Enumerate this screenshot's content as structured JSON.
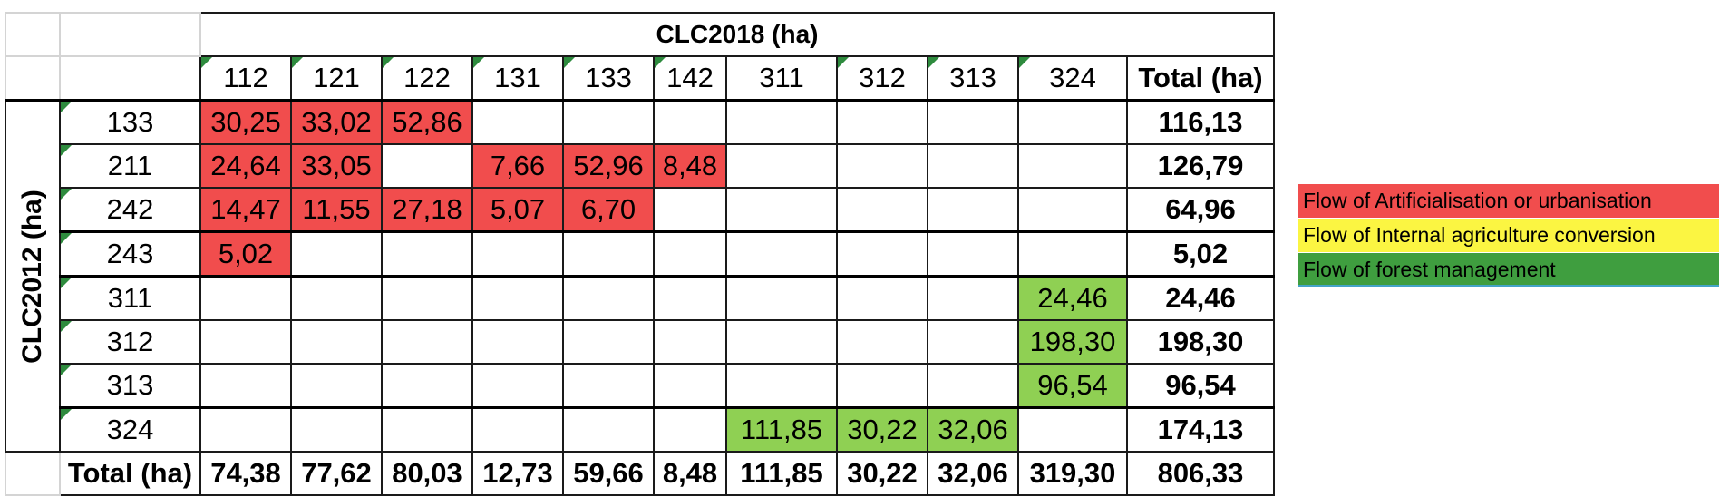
{
  "table": {
    "col_header_title": "CLC2018 (ha)",
    "row_header_title": "CLC2012 (ha)",
    "columns": [
      "112",
      "121",
      "122",
      "131",
      "133",
      "142",
      "311",
      "312",
      "313",
      "324"
    ],
    "total_label": "Total (ha)",
    "rows": [
      {
        "code": "133",
        "cells": [
          "30,25",
          "33,02",
          "52,86",
          "",
          "",
          "",
          "",
          "",
          "",
          ""
        ],
        "total": "116,13"
      },
      {
        "code": "211",
        "cells": [
          "24,64",
          "33,05",
          "",
          "7,66",
          "52,96",
          "8,48",
          "",
          "",
          "",
          ""
        ],
        "total": "126,79"
      },
      {
        "code": "242",
        "cells": [
          "14,47",
          "11,55",
          "27,18",
          "5,07",
          "6,70",
          "",
          "",
          "",
          "",
          ""
        ],
        "total": "64,96"
      },
      {
        "code": "243",
        "cells": [
          "5,02",
          "",
          "",
          "",
          "",
          "",
          "",
          "",
          "",
          ""
        ],
        "total": "5,02"
      },
      {
        "code": "311",
        "cells": [
          "",
          "",
          "",
          "",
          "",
          "",
          "",
          "",
          "",
          "24,46"
        ],
        "total": "24,46"
      },
      {
        "code": "312",
        "cells": [
          "",
          "",
          "",
          "",
          "",
          "",
          "",
          "",
          "",
          "198,30"
        ],
        "total": "198,30"
      },
      {
        "code": "313",
        "cells": [
          "",
          "",
          "",
          "",
          "",
          "",
          "",
          "",
          "",
          "96,54"
        ],
        "total": "96,54"
      },
      {
        "code": "324",
        "cells": [
          "",
          "",
          "",
          "",
          "",
          "",
          "111,85",
          "30,22",
          "32,06",
          ""
        ],
        "total": "174,13"
      }
    ],
    "column_totals": [
      "74,38",
      "77,62",
      "80,03",
      "12,73",
      "59,66",
      "8,48",
      "111,85",
      "30,22",
      "32,06",
      "319,30"
    ],
    "grand_total": "806,33"
  },
  "highlights": {
    "red_cells": [
      [
        0,
        0
      ],
      [
        0,
        1
      ],
      [
        0,
        2
      ],
      [
        1,
        0
      ],
      [
        1,
        1
      ],
      [
        1,
        3
      ],
      [
        1,
        4
      ],
      [
        1,
        5
      ],
      [
        2,
        0
      ],
      [
        2,
        1
      ],
      [
        2,
        2
      ],
      [
        2,
        3
      ],
      [
        2,
        4
      ],
      [
        3,
        0
      ]
    ],
    "green_cells": [
      [
        4,
        9
      ],
      [
        5,
        9
      ],
      [
        6,
        9
      ],
      [
        7,
        6
      ],
      [
        7,
        7
      ],
      [
        7,
        8
      ]
    ]
  },
  "colors": {
    "artificialisation": "#f14d4d",
    "agriculture": "#fbf542",
    "forest": "#3f9e3f",
    "forest_cell": "#8fd053"
  },
  "legend": [
    {
      "label": "Flow of Artificialisation or urbanisation",
      "color": "#f14d4d"
    },
    {
      "label": "Flow of Internal agriculture conversion",
      "color": "#fbf542"
    },
    {
      "label": "Flow of forest management",
      "color": "#3f9e3f"
    }
  ]
}
